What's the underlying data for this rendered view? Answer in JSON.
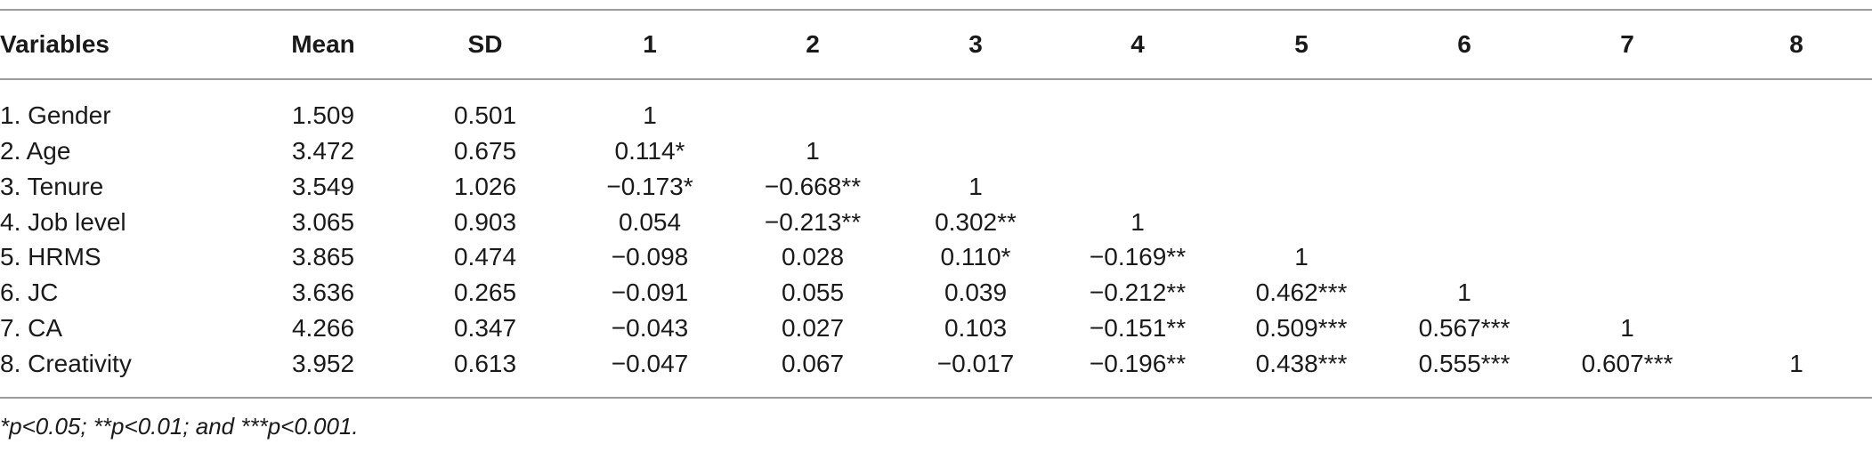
{
  "table": {
    "headers": [
      "Variables",
      "Mean",
      "SD",
      "1",
      "2",
      "3",
      "4",
      "5",
      "6",
      "7",
      "8"
    ],
    "rows": [
      [
        "1. Gender",
        "1.509",
        "0.501",
        "1",
        "",
        "",
        "",
        "",
        "",
        "",
        ""
      ],
      [
        "2. Age",
        "3.472",
        "0.675",
        "0.114*",
        "1",
        "",
        "",
        "",
        "",
        "",
        ""
      ],
      [
        "3. Tenure",
        "3.549",
        "1.026",
        "−0.173*",
        "−0.668**",
        "1",
        "",
        "",
        "",
        "",
        ""
      ],
      [
        "4. Job level",
        "3.065",
        "0.903",
        "0.054",
        "−0.213**",
        "0.302**",
        "1",
        "",
        "",
        "",
        ""
      ],
      [
        "5. HRMS",
        "3.865",
        "0.474",
        "−0.098",
        "0.028",
        "0.110*",
        "−0.169**",
        "1",
        "",
        "",
        ""
      ],
      [
        "6. JC",
        "3.636",
        "0.265",
        "−0.091",
        "0.055",
        "0.039",
        "−0.212**",
        "0.462***",
        "1",
        "",
        ""
      ],
      [
        "7. CA",
        "4.266",
        "0.347",
        "−0.043",
        "0.027",
        "0.103",
        "−0.151**",
        "0.509***",
        "0.567***",
        "1",
        ""
      ],
      [
        "8. Creativity",
        "3.952",
        "0.613",
        "−0.047",
        "0.067",
        "−0.017",
        "−0.196**",
        "0.438***",
        "0.555***",
        "0.607***",
        "1"
      ]
    ]
  },
  "footnote": "*p<0.05; **p<0.01; and ***p<0.001."
}
